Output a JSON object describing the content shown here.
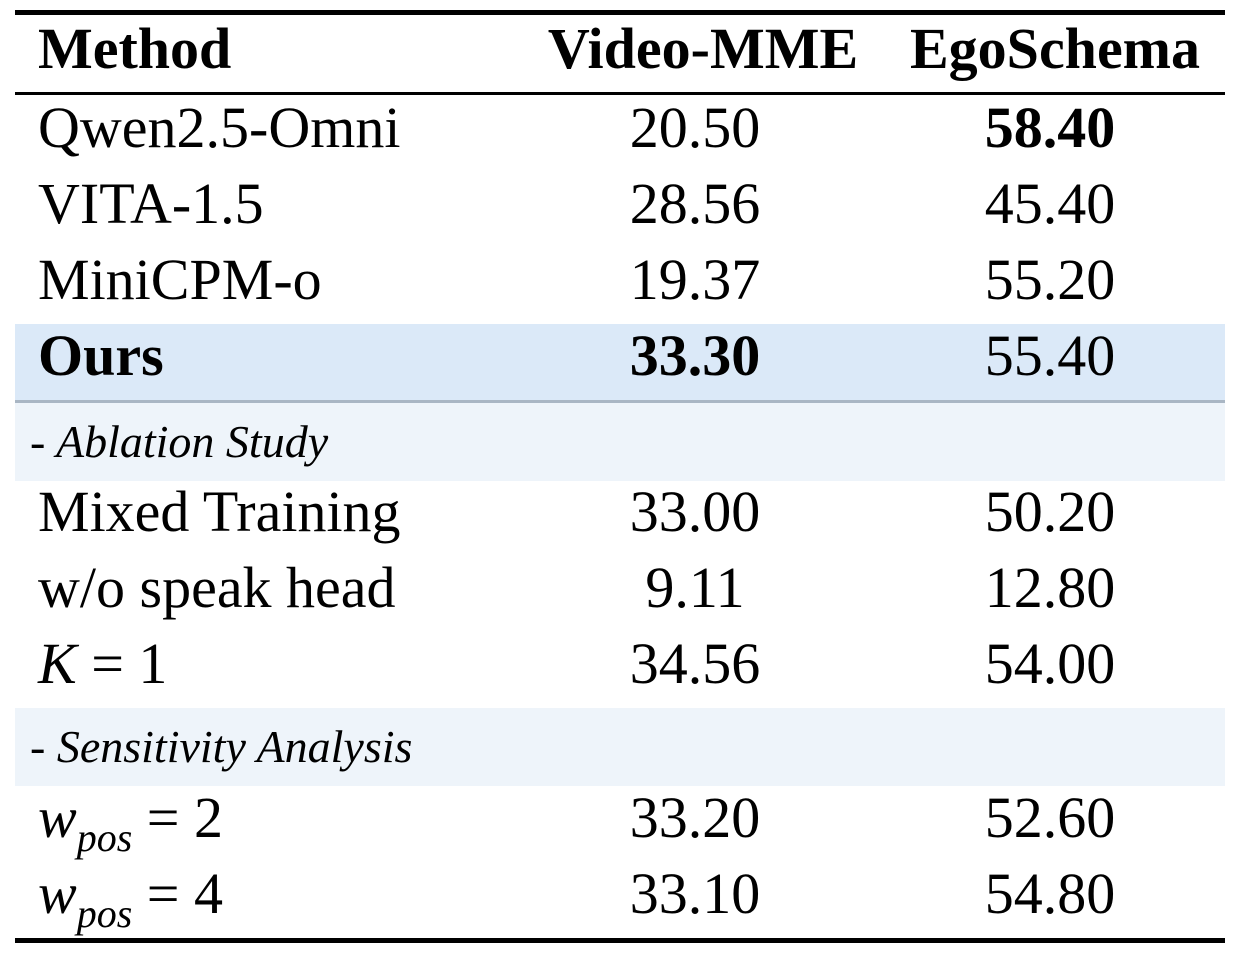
{
  "table": {
    "headers": [
      "Method",
      "Video-MME",
      "EgoSchema"
    ],
    "main_rows": [
      {
        "method": "Qwen2.5-Omni",
        "video_mme": "20.50",
        "egoschema": "58.40"
      },
      {
        "method": "VITA-1.5",
        "video_mme": "28.56",
        "egoschema": "45.40"
      },
      {
        "method": "MiniCPM-o",
        "video_mme": "19.37",
        "egoschema": "55.20"
      },
      {
        "method": "Ours",
        "video_mme": "33.30",
        "egoschema": "55.40"
      }
    ],
    "ablation": {
      "title": "- Ablation Study",
      "rows": [
        {
          "method": "Mixed Training",
          "video_mme": "33.00",
          "egoschema": "50.20"
        },
        {
          "method": "w/o speak head",
          "video_mme": "9.11",
          "egoschema": "12.80"
        },
        {
          "method_var": "K",
          "method_eq": " = 1",
          "video_mme": "34.56",
          "egoschema": "54.00"
        }
      ]
    },
    "sensitivity": {
      "title": "- Sensitivity Analysis",
      "rows": [
        {
          "method_var": "w",
          "method_sub": "pos",
          "method_eq": " = 2",
          "video_mme": "33.20",
          "egoschema": "52.60"
        },
        {
          "method_var": "w",
          "method_sub": "pos",
          "method_eq": " = 4",
          "video_mme": "33.10",
          "egoschema": "54.80"
        }
      ]
    },
    "highlight_color": "#dbe9f8",
    "section_color": "#eef4fa"
  }
}
